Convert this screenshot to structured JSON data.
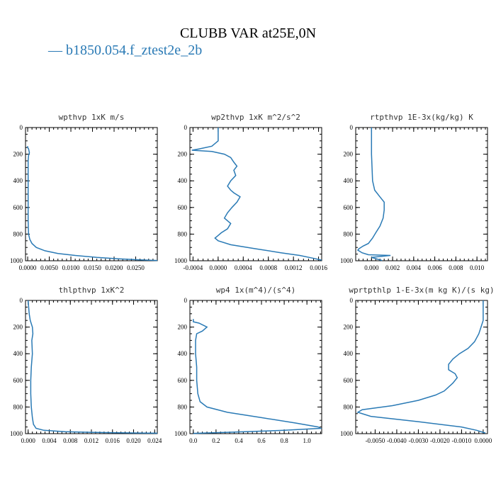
{
  "title": "CLUBB VAR at25E,0N",
  "legend": {
    "label": "— b1850.054.f_ztest2e_2b",
    "color": "#2a7ab5"
  },
  "chart_data": [
    {
      "type": "line",
      "title": "wpthvp   1xK m/s",
      "xlim": [
        -0.0005,
        0.03
      ],
      "ylim": [
        1000,
        0
      ],
      "xticks": [
        0.0,
        0.005,
        0.01,
        0.015,
        0.02,
        0.025
      ],
      "xticklabels": [
        "0.0000",
        "0.0050",
        "0.0100",
        "0.0150",
        "0.0200",
        "0.0250"
      ],
      "yticks": [
        0,
        200,
        400,
        600,
        800,
        1000
      ],
      "yticklabels": [
        "0",
        "200",
        "400",
        "600",
        "800",
        "1000"
      ],
      "series": [
        {
          "color": "#2a7ab5",
          "x": [
            0.0,
            0.0,
            0.0002,
            0.0003,
            0.0004,
            0.0002,
            0.0001,
            0.0001,
            0.0001,
            0.0001,
            0.0001,
            0.0001,
            0.0002,
            0.0005,
            0.001,
            0.002,
            0.004,
            0.007,
            0.011,
            0.016,
            0.021,
            0.026,
            0.03
          ],
          "y": [
            140,
            150,
            160,
            175,
            190,
            210,
            250,
            300,
            400,
            500,
            600,
            700,
            800,
            840,
            870,
            900,
            925,
            945,
            960,
            975,
            985,
            993,
            998
          ]
        }
      ]
    },
    {
      "type": "line",
      "title": "wp2thvp   1xK m^2/s^2",
      "xlim": [
        -0.00045,
        0.00165
      ],
      "ylim": [
        1000,
        0
      ],
      "xticks": [
        -0.0004,
        0.0,
        0.0004,
        0.0008,
        0.0012,
        0.0016
      ],
      "xticklabels": [
        "-0.0004",
        "0.0000",
        "0.0004",
        "0.0008",
        "0.0012",
        "0.0016"
      ],
      "yticks": [
        0,
        200,
        400,
        600,
        800,
        1000
      ],
      "yticklabels": [
        "0",
        "200",
        "400",
        "600",
        "800",
        "1000"
      ],
      "series": [
        {
          "color": "#2a7ab5",
          "x": [
            0.0,
            0.0,
            -0.0001,
            -0.0003,
            -0.00042,
            -0.0001,
            0.0001,
            0.0002,
            0.00025,
            0.0003,
            0.00025,
            0.00028,
            0.0002,
            0.00015,
            0.0002,
            0.00025,
            0.00035,
            0.0003,
            0.00022,
            0.00015,
            0.0001,
            0.0002,
            0.00015,
            5e-05,
            0.0,
            -5e-05,
            0.0,
            0.0002,
            0.0006,
            0.001,
            0.0013,
            0.0015,
            0.00165
          ],
          "y": [
            0,
            100,
            140,
            160,
            170,
            180,
            200,
            225,
            260,
            290,
            320,
            360,
            400,
            440,
            470,
            490,
            520,
            560,
            600,
            640,
            680,
            720,
            760,
            790,
            810,
            830,
            850,
            880,
            910,
            940,
            960,
            980,
            995
          ]
        }
      ]
    },
    {
      "type": "line",
      "title": "rtpthvp   1E-3x(kg/kg) K",
      "xlim": [
        -0.0015,
        0.011
      ],
      "ylim": [
        1000,
        0
      ],
      "xticks": [
        0.0,
        0.002,
        0.004,
        0.006,
        0.008,
        0.01
      ],
      "xticklabels": [
        "0.000",
        "0.002",
        "0.004",
        "0.006",
        "0.008",
        "0.010"
      ],
      "yticks": [
        0,
        200,
        400,
        600,
        800,
        1000
      ],
      "yticklabels": [
        "0",
        "200",
        "400",
        "600",
        "800",
        "1000"
      ],
      "series": [
        {
          "color": "#2a7ab5",
          "x": [
            0.0,
            0.0,
            0.0001,
            0.0003,
            0.0008,
            0.0012,
            0.0012,
            0.0011,
            0.0008,
            0.0004,
            0.0001,
            -0.0003,
            -0.0008,
            -0.0012,
            -0.0013,
            -0.0009,
            -0.0003,
            0.0018,
            0.0,
            0.001
          ],
          "y": [
            0,
            200,
            400,
            470,
            520,
            560,
            620,
            680,
            740,
            790,
            830,
            870,
            890,
            910,
            920,
            940,
            955,
            960,
            975,
            998
          ]
        }
      ]
    },
    {
      "type": "line",
      "title": "thlpthvp   1xK^2",
      "xlim": [
        -0.0005,
        0.0245
      ],
      "ylim": [
        1000,
        0
      ],
      "xticks": [
        0.0,
        0.004,
        0.008,
        0.012,
        0.016,
        0.02,
        0.024
      ],
      "xticklabels": [
        "0.000",
        "0.004",
        "0.008",
        "0.012",
        "0.016",
        "0.020",
        "0.024"
      ],
      "yticks": [
        0,
        200,
        400,
        600,
        800,
        1000
      ],
      "yticklabels": [
        "0",
        "200",
        "400",
        "600",
        "800",
        "1000"
      ],
      "series": [
        {
          "color": "#2a7ab5",
          "x": [
            0.0,
            0.0002,
            0.0004,
            0.0008,
            0.0009,
            0.0007,
            0.0008,
            0.0006,
            0.0005,
            0.0005,
            0.0006,
            0.0008,
            0.001,
            0.0015,
            0.003,
            0.007,
            0.012,
            0.017,
            0.021,
            0.0245
          ],
          "y": [
            0,
            100,
            150,
            200,
            250,
            300,
            400,
            500,
            600,
            700,
            800,
            880,
            930,
            960,
            975,
            985,
            990,
            993,
            995,
            997
          ]
        }
      ]
    },
    {
      "type": "line",
      "title": "wp4   1x(m^4)/(s^4)",
      "xlim": [
        -0.03,
        1.13
      ],
      "ylim": [
        1000,
        0
      ],
      "xticks": [
        0.0,
        0.2,
        0.4,
        0.6,
        0.8,
        1.0
      ],
      "xticklabels": [
        "0.0",
        "0.2",
        "0.4",
        "0.6",
        "0.8",
        "1.0"
      ],
      "yticks": [
        0,
        200,
        400,
        600,
        800,
        1000
      ],
      "yticklabels": [
        "0",
        "200",
        "400",
        "600",
        "800",
        "1000"
      ],
      "series": [
        {
          "color": "#2a7ab5",
          "x": [
            0.0,
            0.0,
            0.05,
            0.12,
            0.08,
            0.03,
            0.02,
            0.02,
            0.03,
            0.03,
            0.04,
            0.06,
            0.12,
            0.3,
            0.6,
            0.9,
            1.1,
            1.12,
            0.8,
            0.3,
            0.0
          ],
          "y": [
            140,
            160,
            170,
            200,
            230,
            250,
            300,
            400,
            500,
            600,
            700,
            760,
            800,
            840,
            880,
            920,
            950,
            960,
            975,
            990,
            998
          ]
        }
      ]
    },
    {
      "type": "line",
      "title": "wprtpthlp   1-E-3x(m kg K)/(s kg)",
      "xlim": [
        -0.0059,
        0.0002
      ],
      "ylim": [
        1000,
        0
      ],
      "xticks": [
        -0.005,
        -0.004,
        -0.003,
        -0.002,
        -0.001,
        0.0
      ],
      "xticklabels": [
        "-0.0050",
        "-0.0040",
        "-0.0030",
        "-0.0020",
        "-0.0010",
        "0.0000"
      ],
      "yticks": [
        0,
        200,
        400,
        600,
        800,
        1000
      ],
      "yticklabels": [
        "0",
        "200",
        "400",
        "600",
        "800",
        "1000"
      ],
      "series": [
        {
          "color": "#2a7ab5",
          "x": [
            0.0,
            0.0,
            -0.0002,
            -0.0004,
            -0.0007,
            -0.0011,
            -0.0014,
            -0.0016,
            -0.0016,
            -0.0013,
            -0.0012,
            -0.0014,
            -0.0016,
            -0.0018,
            -0.0022,
            -0.003,
            -0.0042,
            -0.0056,
            -0.0058,
            -0.0052,
            -0.003,
            -0.001,
            -0.0003,
            0.0001
          ],
          "y": [
            0,
            150,
            250,
            310,
            360,
            400,
            440,
            480,
            520,
            550,
            580,
            620,
            650,
            680,
            710,
            750,
            790,
            820,
            840,
            870,
            910,
            950,
            975,
            995
          ]
        }
      ]
    }
  ]
}
